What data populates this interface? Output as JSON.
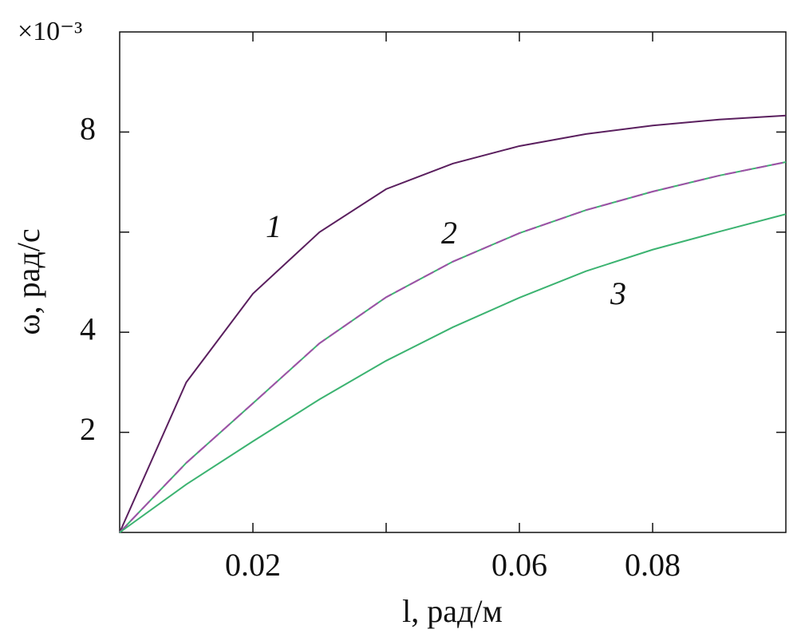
{
  "chart_data": {
    "type": "line",
    "x_label": "l, рад/м",
    "y_label": "ω, рад/с",
    "y_multiplier": "×10⁻³",
    "x": [
      0,
      0.01,
      0.02,
      0.03,
      0.04,
      0.05,
      0.06,
      0.07,
      0.08,
      0.09,
      0.1
    ],
    "series": [
      {
        "name": "1",
        "color": "#5a1f5e",
        "style": "solid",
        "values": [
          0,
          3.0,
          4.77,
          6.0,
          6.86,
          7.37,
          7.72,
          7.96,
          8.13,
          8.25,
          8.33
        ]
      },
      {
        "name": "2",
        "color": "#a04fa8",
        "style": "dashed",
        "values": [
          0,
          1.39,
          2.58,
          3.78,
          4.7,
          5.41,
          5.98,
          6.44,
          6.81,
          7.13,
          7.4
        ]
      },
      {
        "name": "3",
        "color": "#3cb371",
        "style": "solid",
        "values": [
          0,
          0.96,
          1.82,
          2.66,
          3.43,
          4.1,
          4.69,
          5.22,
          5.65,
          6.01,
          6.36
        ]
      }
    ],
    "xlim": [
      0,
      0.1
    ],
    "ylim": [
      0,
      10
    ],
    "xticks": [
      0.02,
      {
        "value": 0.04,
        "label": null
      },
      0.06,
      0.08
    ],
    "yticks": [
      2,
      4,
      {
        "value": 6,
        "label": null
      },
      8
    ],
    "grid": false
  }
}
